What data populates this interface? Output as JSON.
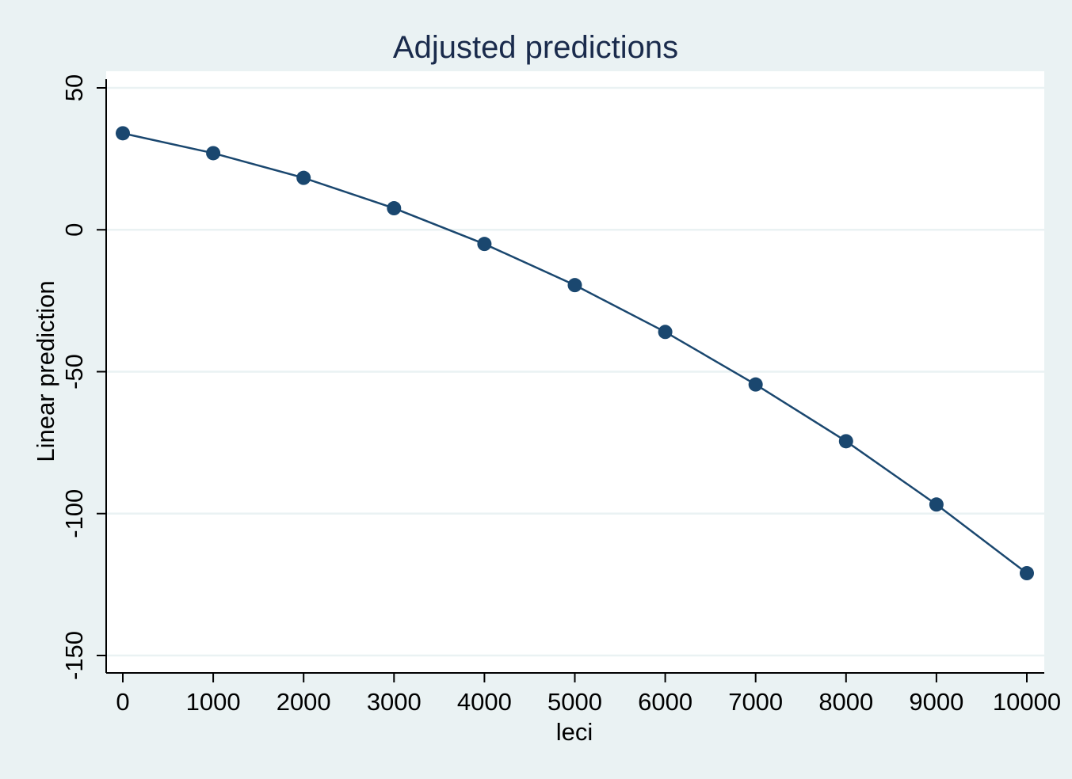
{
  "chart_data": {
    "type": "line",
    "title": "Adjusted predictions",
    "xlabel": "leci",
    "ylabel": "Linear prediction",
    "x": [
      0,
      1000,
      2000,
      3000,
      4000,
      5000,
      6000,
      7000,
      8000,
      9000,
      10000
    ],
    "series": [
      {
        "values": [
          34,
          27,
          18.3,
          7.6,
          -5,
          -19.5,
          -36,
          -54.5,
          -74.5,
          -96.8,
          -121
        ]
      }
    ],
    "xlim": [
      0,
      10000
    ],
    "ylim": [
      -150,
      50
    ],
    "xticks": [
      "0",
      "1000",
      "2000",
      "3000",
      "4000",
      "5000",
      "6000",
      "7000",
      "8000",
      "9000",
      "10000"
    ],
    "yticks": [
      "-150",
      "-100",
      "-50",
      "0",
      "50"
    ],
    "ytick_values": [
      -150,
      -100,
      -50,
      0,
      50
    ],
    "grid": true,
    "colors": {
      "background": "#eaf2f3",
      "plot_area": "#ffffff",
      "series": "#1a476f",
      "grid": "#eaf2f3"
    }
  }
}
